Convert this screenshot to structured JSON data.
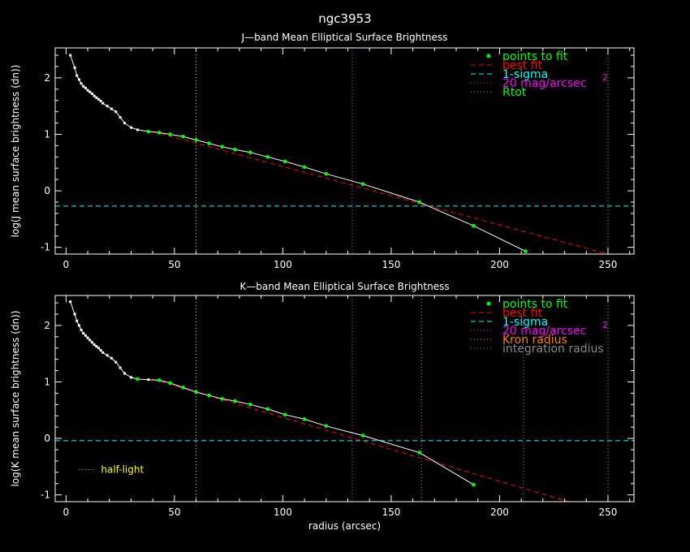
{
  "figure": {
    "title": "ngc3953"
  },
  "colors": {
    "background": "#000000",
    "axes": "#ffffff",
    "data": "#ffffff",
    "fit_points": "#00ff00",
    "best_fit": "#ff0000",
    "sigma": "#00ffff",
    "mag20": "#ff00ff",
    "kron": "#ff7f00",
    "rtot": "#00ff00",
    "integration": "#00aaaa",
    "half_light": "#ffff00"
  },
  "chart_data": [
    {
      "type": "line",
      "title": "J—band Mean Elliptical Surface Brightness",
      "xlabel": "",
      "ylabel": "log(J mean surface brightness (dn))",
      "xlim": [
        -5,
        262
      ],
      "ylim": [
        -1.12,
        2.53
      ],
      "x_ticks": [
        0,
        50,
        100,
        150,
        200,
        250
      ],
      "y_ticks": [
        -1,
        0,
        1,
        2
      ],
      "x_ticks_labeled": true,
      "legend_position": "top-right",
      "legend": [
        {
          "label": "points to fit",
          "kind": "points",
          "color": "#00ff00"
        },
        {
          "label": "best fit",
          "kind": "dashed",
          "color": "#ff0000"
        },
        {
          "label": "1-sigma",
          "kind": "dashed",
          "color": "#00ffff"
        },
        {
          "label": "20 mag/arcsec",
          "superscript": "2",
          "kind": "dotted",
          "color": "#ff00ff"
        },
        {
          "label": "Rtot",
          "kind": "dotted",
          "color": "#00ff00"
        }
      ],
      "profile": {
        "x": [
          2,
          4,
          5,
          6,
          7,
          8,
          9,
          10,
          11,
          12,
          13,
          14,
          15,
          16,
          17,
          19,
          21,
          23,
          25,
          27,
          30,
          33,
          38,
          43,
          48,
          54,
          60,
          66,
          72,
          78,
          85,
          93,
          101,
          110,
          120,
          137,
          163,
          188,
          212
        ],
        "y": [
          2.4,
          2.18,
          2.04,
          1.97,
          1.9,
          1.85,
          1.82,
          1.78,
          1.75,
          1.72,
          1.68,
          1.65,
          1.62,
          1.59,
          1.55,
          1.5,
          1.45,
          1.4,
          1.3,
          1.2,
          1.12,
          1.08,
          1.05,
          1.03,
          1.0,
          0.96,
          0.9,
          0.84,
          0.78,
          0.73,
          0.68,
          0.6,
          0.52,
          0.42,
          0.3,
          0.12,
          -0.2,
          -0.62,
          -1.07
        ]
      },
      "fit_points": {
        "x": [
          38,
          43,
          48,
          54,
          60,
          66,
          72,
          78,
          85,
          93,
          101,
          110,
          120,
          137,
          163,
          188,
          212
        ],
        "y": [
          1.05,
          1.03,
          1.0,
          0.96,
          0.9,
          0.84,
          0.78,
          0.73,
          0.68,
          0.6,
          0.52,
          0.42,
          0.3,
          0.12,
          -0.2,
          -0.62,
          -1.07
        ]
      },
      "best_fit": {
        "x": [
          40,
          250
        ],
        "y": [
          1.05,
          -1.12
        ]
      },
      "sigma_level": -0.27,
      "vlines": [
        {
          "x": 60,
          "color": "#ffff00"
        },
        {
          "x": 132,
          "color": "#ff00ff"
        },
        {
          "x": 250,
          "color": "#00ff00"
        }
      ],
      "annotations": []
    },
    {
      "type": "line",
      "title": "K—band Mean Elliptical Surface Brightness",
      "xlabel": "radius (arcsec)",
      "ylabel": "log(K mean surface brightness (dn))",
      "xlim": [
        -5,
        262
      ],
      "ylim": [
        -1.12,
        2.53
      ],
      "x_ticks": [
        0,
        50,
        100,
        150,
        200,
        250
      ],
      "y_ticks": [
        -1,
        0,
        1,
        2
      ],
      "x_ticks_labeled": true,
      "legend_position": "top-right",
      "legend": [
        {
          "label": "points to fit",
          "kind": "points",
          "color": "#00ff00"
        },
        {
          "label": "best fit",
          "kind": "dashed",
          "color": "#ff0000"
        },
        {
          "label": "1-sigma",
          "kind": "dashed",
          "color": "#00ffff"
        },
        {
          "label": "20 mag/arcsec",
          "superscript": "2",
          "kind": "dotted",
          "color": "#ff00ff"
        },
        {
          "label": "Kron radius",
          "kind": "dotted",
          "color": "#ff7f00"
        },
        {
          "label": "integration radius",
          "kind": "dotted",
          "color": "#888888"
        }
      ],
      "profile": {
        "x": [
          2,
          4,
          5,
          6,
          7,
          8,
          9,
          10,
          11,
          12,
          13,
          14,
          15,
          16,
          17,
          19,
          21,
          23,
          25,
          27,
          30,
          33,
          38,
          43,
          48,
          54,
          60,
          66,
          72,
          78,
          85,
          93,
          101,
          110,
          120,
          137,
          163,
          188
        ],
        "y": [
          2.42,
          2.2,
          2.08,
          2.0,
          1.92,
          1.86,
          1.82,
          1.78,
          1.74,
          1.7,
          1.66,
          1.63,
          1.6,
          1.56,
          1.52,
          1.47,
          1.42,
          1.35,
          1.25,
          1.15,
          1.08,
          1.05,
          1.04,
          1.03,
          0.98,
          0.9,
          0.82,
          0.76,
          0.7,
          0.66,
          0.6,
          0.52,
          0.42,
          0.34,
          0.22,
          0.05,
          -0.25,
          -0.82
        ]
      },
      "fit_points": {
        "x": [
          33,
          43,
          48,
          54,
          60,
          66,
          72,
          78,
          85,
          93,
          101,
          110,
          120,
          137,
          163,
          188
        ],
        "y": [
          1.05,
          1.03,
          0.98,
          0.9,
          0.82,
          0.76,
          0.7,
          0.66,
          0.6,
          0.52,
          0.42,
          0.34,
          0.22,
          0.05,
          -0.25,
          -0.82
        ]
      },
      "best_fit": {
        "x": [
          40,
          232
        ],
        "y": [
          1.05,
          -1.12
        ]
      },
      "sigma_level": -0.04,
      "vlines": [
        {
          "x": 60,
          "color": "#ffff00"
        },
        {
          "x": 132,
          "color": "#ff00ff"
        },
        {
          "x": 164,
          "color": "#ff7f00"
        },
        {
          "x": 211,
          "color": "#00aaaa"
        },
        {
          "x": 250,
          "color": "#00ff00"
        }
      ],
      "annotations": [
        {
          "label": "half-light",
          "kind": "dotted",
          "color": "#ffff00",
          "x": 6,
          "y": -0.55
        }
      ]
    }
  ]
}
